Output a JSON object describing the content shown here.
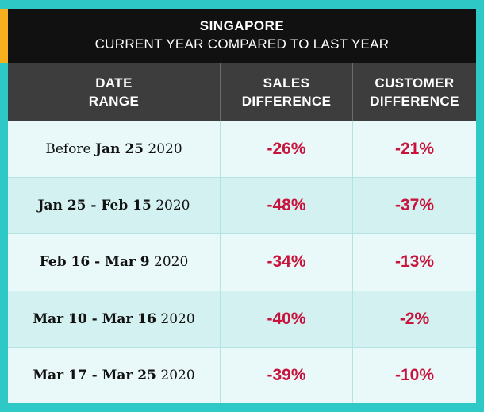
{
  "chart_data": {
    "type": "table",
    "title": "SINGAPORE",
    "subtitle": "CURRENT YEAR COMPARED TO LAST YEAR",
    "columns": [
      "DATE\nRANGE",
      "SALES\nDIFFERENCE",
      "CUSTOMER\nDIFFERENCE"
    ],
    "rows": [
      {
        "prefix": "Before ",
        "bold": "Jan 25",
        "suffix": " 2020",
        "sales": "-26%",
        "customers": "-21%"
      },
      {
        "prefix": "",
        "bold": "Jan 25 - Feb 15",
        "suffix": " 2020",
        "sales": "-48%",
        "customers": "-37%"
      },
      {
        "prefix": "",
        "bold": "Feb 16 - Mar 9",
        "suffix": " 2020",
        "sales": "-34%",
        "customers": "-13%"
      },
      {
        "prefix": "",
        "bold": "Mar 10 - Mar 16",
        "suffix": " 2020",
        "sales": "-40%",
        "customers": "-2%"
      },
      {
        "prefix": "",
        "bold": "Mar 17 - Mar 25",
        "suffix": " 2020",
        "sales": "-39%",
        "customers": "-10%"
      }
    ]
  },
  "colors": {
    "page_background": "#2ec9c6",
    "accent": "#f6b01e",
    "title_background": "#111111",
    "header_background": "#3d3d3d",
    "value_text": "#c8143c"
  }
}
